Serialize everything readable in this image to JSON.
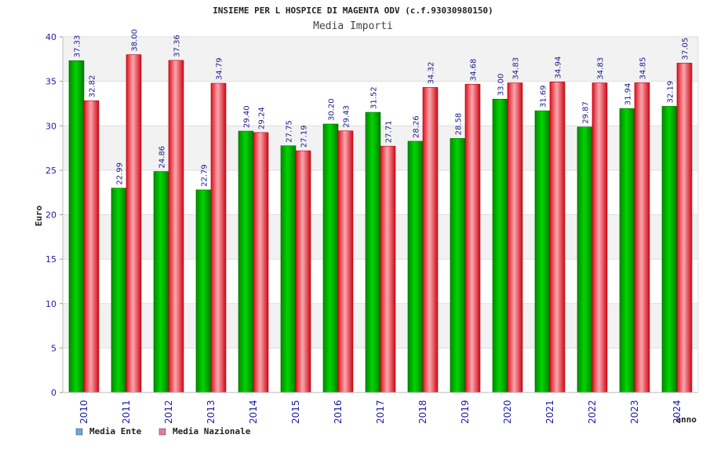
{
  "chart_data": {
    "type": "bar",
    "title": "INSIEME PER L HOSPICE DI MAGENTA ODV (c.f.93030980150)",
    "subtitle": "Media Importi",
    "xlabel": "anno",
    "ylabel": "Euro",
    "ylim": [
      0,
      40
    ],
    "yticks": [
      0,
      5,
      10,
      15,
      20,
      25,
      30,
      35,
      40
    ],
    "grid": true,
    "legend_position": "bottom-left",
    "categories": [
      "2010",
      "2011",
      "2012",
      "2013",
      "2014",
      "2015",
      "2016",
      "2017",
      "2018",
      "2019",
      "2020",
      "2021",
      "2022",
      "2023",
      "2024"
    ],
    "series": [
      {
        "name": "Media Ente",
        "color": "#00b000",
        "legend_color": "#6aa6e8",
        "values": [
          37.33,
          22.99,
          24.86,
          22.79,
          29.4,
          27.75,
          30.2,
          31.52,
          28.26,
          28.58,
          33.0,
          31.69,
          29.87,
          31.94,
          32.19
        ],
        "labels": [
          "37.33",
          "22.99",
          "24.86",
          "22.79",
          "29.40",
          "27.75",
          "30.20",
          "31.52",
          "28.26",
          "28.58",
          "33.00",
          "31.69",
          "29.87",
          "31.94",
          "32.19"
        ]
      },
      {
        "name": "Media Nazionale",
        "color": "#e8202a",
        "legend_color": "#e07aa8",
        "values": [
          32.82,
          38.0,
          37.36,
          34.79,
          29.24,
          27.19,
          29.43,
          27.71,
          34.32,
          34.68,
          34.83,
          34.94,
          34.83,
          34.85,
          37.05
        ],
        "labels": [
          "32.82",
          "38.00",
          "37.36",
          "34.79",
          "29.24",
          "27.19",
          "29.43",
          "27.71",
          "34.32",
          "34.68",
          "34.83",
          "34.94",
          "34.83",
          "34.85",
          "37.05"
        ]
      }
    ]
  }
}
